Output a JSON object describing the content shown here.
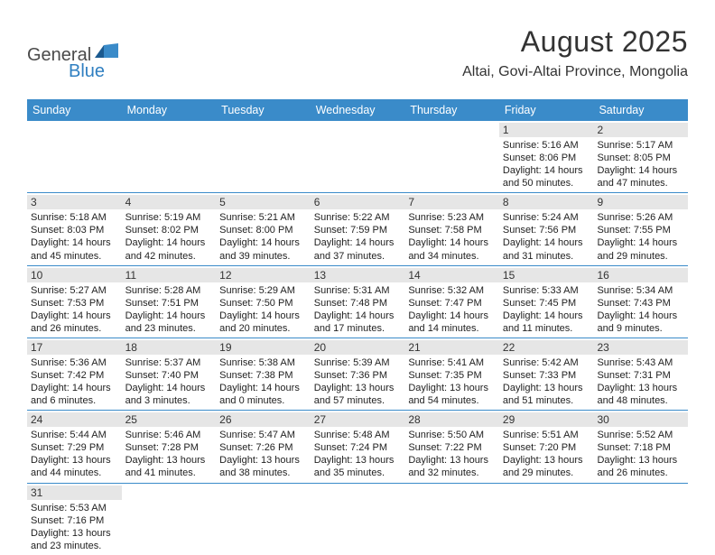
{
  "logo": {
    "text1": "General",
    "text2": "Blue"
  },
  "title": {
    "month": "August 2025",
    "location": "Altai, Govi-Altai Province, Mongolia"
  },
  "dayHeaders": [
    "Sunday",
    "Monday",
    "Tuesday",
    "Wednesday",
    "Thursday",
    "Friday",
    "Saturday"
  ],
  "days": {
    "1": {
      "sunrise": "Sunrise: 5:16 AM",
      "sunset": "Sunset: 8:06 PM",
      "daylight": "Daylight: 14 hours and 50 minutes."
    },
    "2": {
      "sunrise": "Sunrise: 5:17 AM",
      "sunset": "Sunset: 8:05 PM",
      "daylight": "Daylight: 14 hours and 47 minutes."
    },
    "3": {
      "sunrise": "Sunrise: 5:18 AM",
      "sunset": "Sunset: 8:03 PM",
      "daylight": "Daylight: 14 hours and 45 minutes."
    },
    "4": {
      "sunrise": "Sunrise: 5:19 AM",
      "sunset": "Sunset: 8:02 PM",
      "daylight": "Daylight: 14 hours and 42 minutes."
    },
    "5": {
      "sunrise": "Sunrise: 5:21 AM",
      "sunset": "Sunset: 8:00 PM",
      "daylight": "Daylight: 14 hours and 39 minutes."
    },
    "6": {
      "sunrise": "Sunrise: 5:22 AM",
      "sunset": "Sunset: 7:59 PM",
      "daylight": "Daylight: 14 hours and 37 minutes."
    },
    "7": {
      "sunrise": "Sunrise: 5:23 AM",
      "sunset": "Sunset: 7:58 PM",
      "daylight": "Daylight: 14 hours and 34 minutes."
    },
    "8": {
      "sunrise": "Sunrise: 5:24 AM",
      "sunset": "Sunset: 7:56 PM",
      "daylight": "Daylight: 14 hours and 31 minutes."
    },
    "9": {
      "sunrise": "Sunrise: 5:26 AM",
      "sunset": "Sunset: 7:55 PM",
      "daylight": "Daylight: 14 hours and 29 minutes."
    },
    "10": {
      "sunrise": "Sunrise: 5:27 AM",
      "sunset": "Sunset: 7:53 PM",
      "daylight": "Daylight: 14 hours and 26 minutes."
    },
    "11": {
      "sunrise": "Sunrise: 5:28 AM",
      "sunset": "Sunset: 7:51 PM",
      "daylight": "Daylight: 14 hours and 23 minutes."
    },
    "12": {
      "sunrise": "Sunrise: 5:29 AM",
      "sunset": "Sunset: 7:50 PM",
      "daylight": "Daylight: 14 hours and 20 minutes."
    },
    "13": {
      "sunrise": "Sunrise: 5:31 AM",
      "sunset": "Sunset: 7:48 PM",
      "daylight": "Daylight: 14 hours and 17 minutes."
    },
    "14": {
      "sunrise": "Sunrise: 5:32 AM",
      "sunset": "Sunset: 7:47 PM",
      "daylight": "Daylight: 14 hours and 14 minutes."
    },
    "15": {
      "sunrise": "Sunrise: 5:33 AM",
      "sunset": "Sunset: 7:45 PM",
      "daylight": "Daylight: 14 hours and 11 minutes."
    },
    "16": {
      "sunrise": "Sunrise: 5:34 AM",
      "sunset": "Sunset: 7:43 PM",
      "daylight": "Daylight: 14 hours and 9 minutes."
    },
    "17": {
      "sunrise": "Sunrise: 5:36 AM",
      "sunset": "Sunset: 7:42 PM",
      "daylight": "Daylight: 14 hours and 6 minutes."
    },
    "18": {
      "sunrise": "Sunrise: 5:37 AM",
      "sunset": "Sunset: 7:40 PM",
      "daylight": "Daylight: 14 hours and 3 minutes."
    },
    "19": {
      "sunrise": "Sunrise: 5:38 AM",
      "sunset": "Sunset: 7:38 PM",
      "daylight": "Daylight: 14 hours and 0 minutes."
    },
    "20": {
      "sunrise": "Sunrise: 5:39 AM",
      "sunset": "Sunset: 7:36 PM",
      "daylight": "Daylight: 13 hours and 57 minutes."
    },
    "21": {
      "sunrise": "Sunrise: 5:41 AM",
      "sunset": "Sunset: 7:35 PM",
      "daylight": "Daylight: 13 hours and 54 minutes."
    },
    "22": {
      "sunrise": "Sunrise: 5:42 AM",
      "sunset": "Sunset: 7:33 PM",
      "daylight": "Daylight: 13 hours and 51 minutes."
    },
    "23": {
      "sunrise": "Sunrise: 5:43 AM",
      "sunset": "Sunset: 7:31 PM",
      "daylight": "Daylight: 13 hours and 48 minutes."
    },
    "24": {
      "sunrise": "Sunrise: 5:44 AM",
      "sunset": "Sunset: 7:29 PM",
      "daylight": "Daylight: 13 hours and 44 minutes."
    },
    "25": {
      "sunrise": "Sunrise: 5:46 AM",
      "sunset": "Sunset: 7:28 PM",
      "daylight": "Daylight: 13 hours and 41 minutes."
    },
    "26": {
      "sunrise": "Sunrise: 5:47 AM",
      "sunset": "Sunset: 7:26 PM",
      "daylight": "Daylight: 13 hours and 38 minutes."
    },
    "27": {
      "sunrise": "Sunrise: 5:48 AM",
      "sunset": "Sunset: 7:24 PM",
      "daylight": "Daylight: 13 hours and 35 minutes."
    },
    "28": {
      "sunrise": "Sunrise: 5:50 AM",
      "sunset": "Sunset: 7:22 PM",
      "daylight": "Daylight: 13 hours and 32 minutes."
    },
    "29": {
      "sunrise": "Sunrise: 5:51 AM",
      "sunset": "Sunset: 7:20 PM",
      "daylight": "Daylight: 13 hours and 29 minutes."
    },
    "30": {
      "sunrise": "Sunrise: 5:52 AM",
      "sunset": "Sunset: 7:18 PM",
      "daylight": "Daylight: 13 hours and 26 minutes."
    },
    "31": {
      "sunrise": "Sunrise: 5:53 AM",
      "sunset": "Sunset: 7:16 PM",
      "daylight": "Daylight: 13 hours and 23 minutes."
    }
  },
  "colors": {
    "header_bg": "#3a8bc9",
    "header_text": "#ffffff",
    "daynum_bg": "#e6e6e6",
    "cell_border": "#3a8bc9",
    "logo_blue": "#2f7fc1"
  },
  "layout": {
    "startWeekday": 5,
    "numDays": 31,
    "columns": 7
  }
}
